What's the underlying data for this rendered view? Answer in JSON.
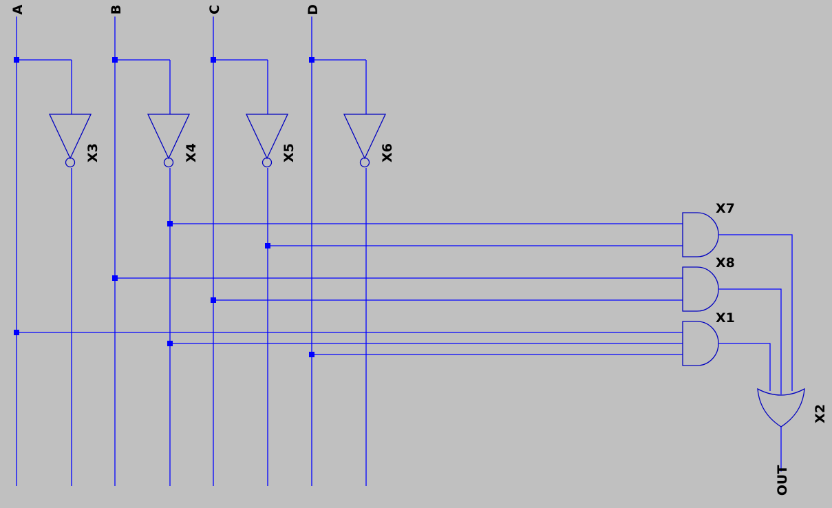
{
  "inputs": [
    "A",
    "B",
    "C",
    "D"
  ],
  "inverters": [
    "X3",
    "X4",
    "X5",
    "X6"
  ],
  "and_gates": [
    "X7",
    "X8",
    "X1"
  ],
  "or_gate": "X2",
  "output": "OUT",
  "colors": {
    "background": "#c0c0c0",
    "wire": "#0000ff",
    "gate": "#0000c0",
    "junction": "#0000ff",
    "label": "#000000"
  }
}
